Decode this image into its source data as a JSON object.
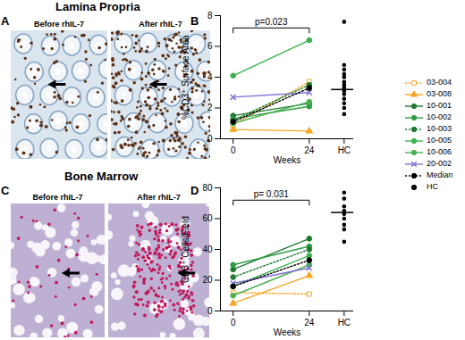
{
  "chart_data": [
    {
      "type": "image",
      "panel": "A",
      "title": "Lamina Propria",
      "labels": [
        "Before rhIL-7",
        "After rhIL-7"
      ]
    },
    {
      "type": "line",
      "panel": "B",
      "x": [
        0,
        24
      ],
      "xlim": [
        -4,
        38
      ],
      "xticks": [
        0,
        24,
        {
          "value": 35,
          "label": "HC"
        }
      ],
      "ylim": [
        0,
        8
      ],
      "yticks": [
        0,
        2,
        4,
        6,
        8
      ],
      "xlabel": "Weeks",
      "ylabel": "%CD3⁺ Surface Area",
      "annotation": "p=0.023",
      "legend": "right",
      "series": [
        {
          "name": "03-004",
          "color": "#f5a623",
          "marker": "square",
          "line_style": "dotted",
          "values": [
            0.9,
            3.7
          ]
        },
        {
          "name": "03-008",
          "color": "#f5a623",
          "marker": "triangle",
          "line_style": "solid",
          "values": [
            0.6,
            0.5
          ]
        },
        {
          "name": "10-001",
          "color": "#1e7b30",
          "marker": "circle",
          "line_style": "solid",
          "values": [
            1.5,
            2.3
          ]
        },
        {
          "name": "10-002",
          "color": "#2e9e45",
          "marker": "circle",
          "line_style": "solid",
          "values": [
            1.3,
            2.1
          ]
        },
        {
          "name": "10-003",
          "color": "#1e7b30",
          "marker": "circle",
          "line_style": "dotted",
          "values": [
            1.2,
            3.5
          ]
        },
        {
          "name": "10-005",
          "color": "#3cb24f",
          "marker": "circle",
          "line_style": "solid",
          "values": [
            4.1,
            6.4
          ]
        },
        {
          "name": "10-006",
          "color": "#4caf50",
          "marker": "circle",
          "line_style": "solid",
          "values": [
            1.0,
            2.4
          ]
        },
        {
          "name": "20-002",
          "color": "#7f72d6",
          "marker": "times",
          "line_style": "solid",
          "values": [
            2.7,
            3.0
          ]
        },
        {
          "name": "Median",
          "color": "#000000",
          "marker": "circle",
          "line_style": "dotted",
          "values": [
            1.1,
            3.3
          ]
        },
        {
          "name": "HC",
          "type": "scatter",
          "color": "#000000",
          "marker": "circle",
          "x": [
            35,
            35,
            35,
            35,
            35,
            35,
            35,
            35,
            35,
            35,
            35,
            35,
            35,
            35
          ],
          "values": [
            7.6,
            4.8,
            4.5,
            4.2,
            4.0,
            3.7,
            3.5,
            3.3,
            3.1,
            2.9,
            2.6,
            2.3,
            2.0,
            1.6
          ],
          "median": 3.2
        }
      ]
    },
    {
      "type": "image",
      "panel": "C",
      "title": "Bone Marrow",
      "labels": [
        "Before rhIL-7",
        "After rhIL-7"
      ]
    },
    {
      "type": "line",
      "panel": "D",
      "x": [
        0,
        24
      ],
      "xlim": [
        -4,
        38
      ],
      "xticks": [
        0,
        24,
        {
          "value": 35,
          "label": "HC"
        }
      ],
      "ylim": [
        0,
        80
      ],
      "yticks": [
        0,
        20,
        40,
        60,
        80
      ],
      "xlabel": "Weeks",
      "ylabel": "CD3⁺ Cells/Field",
      "annotation": "p= 0.031",
      "series": [
        {
          "name": "03-004",
          "values": [
            12,
            11
          ]
        },
        {
          "name": "03-008",
          "values": [
            5,
            23
          ]
        },
        {
          "name": "10-001",
          "values": [
            27,
            47
          ]
        },
        {
          "name": "10-002",
          "values": [
            30,
            42
          ]
        },
        {
          "name": "10-003",
          "values": [
            22,
            40
          ]
        },
        {
          "name": "10-005",
          "values": [
            16,
            36
          ]
        },
        {
          "name": "10-006",
          "values": [
            10,
            30
          ]
        },
        {
          "name": "20-002",
          "values": [
            18,
            28
          ]
        },
        {
          "name": "Median",
          "values": [
            16,
            33
          ]
        },
        {
          "name": "HC",
          "x": [
            35,
            35,
            35,
            35,
            35,
            35,
            35,
            35,
            35
          ],
          "values": [
            77,
            73,
            68,
            65,
            63,
            60,
            56,
            53,
            45
          ],
          "median": 64
        }
      ]
    }
  ]
}
